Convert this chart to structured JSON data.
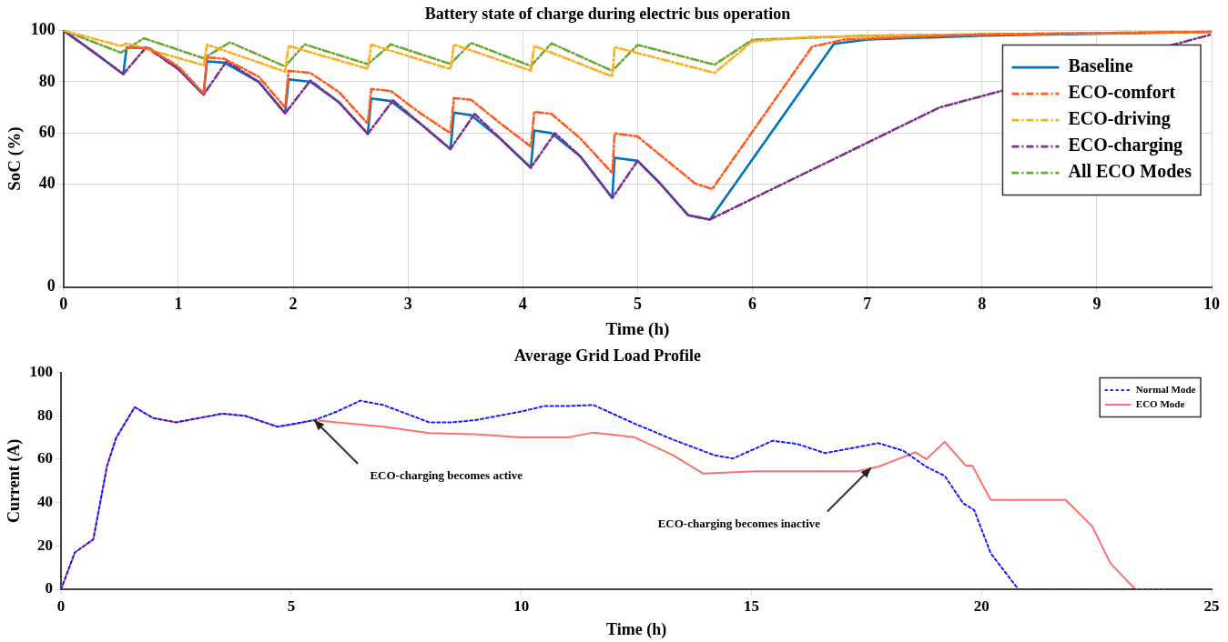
{
  "chart_data": [
    {
      "type": "line",
      "title": "Battery state of charge during electric bus operation",
      "xlabel": "Time (h)",
      "ylabel": "SoC (%)",
      "xlim": [
        0,
        10
      ],
      "xticks": [
        0,
        1,
        2,
        3,
        4,
        5,
        6,
        7,
        8,
        9,
        10
      ],
      "ylim": [
        0,
        100
      ],
      "yticks": [
        0,
        40,
        60,
        80,
        100
      ],
      "grid": true,
      "legend": "top right",
      "series": [
        {
          "name": "Baseline",
          "color": "#0072bd",
          "line_style": "solid",
          "x": [
            0,
            0.25,
            0.52,
            0.55,
            0.75,
            1.0,
            1.22,
            1.25,
            1.4,
            1.7,
            1.93,
            1.96,
            2.15,
            2.4,
            2.65,
            2.68,
            2.85,
            3.1,
            3.37,
            3.4,
            3.55,
            3.8,
            4.07,
            4.1,
            4.25,
            4.5,
            4.78,
            4.8,
            5.0,
            5.2,
            5.44,
            5.63,
            6.71,
            7,
            8,
            10
          ],
          "values": [
            100,
            92,
            83,
            93.5,
            93,
            85,
            75,
            88,
            87.5,
            80,
            67.7,
            81,
            80,
            72,
            59.7,
            73.5,
            72.5,
            64,
            53.8,
            68,
            67,
            58,
            46.5,
            61,
            60,
            51,
            34.7,
            50.4,
            49.2,
            40.2,
            28,
            26.3,
            94.8,
            96.5,
            98,
            99.5
          ]
        },
        {
          "name": "ECO-comfort",
          "color": "#ff5a1f",
          "line_style": "dashed",
          "x": [
            0.55,
            0.75,
            1.0,
            1.22,
            1.25,
            1.4,
            1.7,
            1.93,
            1.96,
            2.15,
            2.4,
            2.65,
            2.68,
            2.85,
            3.1,
            3.37,
            3.4,
            3.55,
            3.8,
            4.07,
            4.1,
            4.25,
            4.5,
            4.78,
            4.8,
            5.0,
            5.5,
            5.65,
            6.52,
            6.8,
            8,
            10
          ],
          "values": [
            93.5,
            93,
            86,
            75.5,
            89.5,
            89,
            82,
            70,
            84.3,
            83.5,
            76,
            63.7,
            77.2,
            76.5,
            68,
            60,
            73.7,
            73,
            64,
            54.8,
            68.3,
            67.5,
            58,
            44.4,
            59.9,
            58.7,
            40.4,
            38.2,
            93.7,
            96.5,
            98.5,
            99.5
          ]
        },
        {
          "name": "ECO-driving",
          "color": "#ffad1f",
          "line_style": "dashed",
          "x": [
            0,
            0.5,
            0.55,
            1.22,
            1.25,
            1.93,
            1.96,
            2.65,
            2.68,
            3.37,
            3.4,
            4.07,
            4.1,
            4.78,
            4.8,
            5.67,
            6.0,
            6.5,
            8,
            10
          ],
          "values": [
            100,
            94,
            95,
            86.5,
            94.5,
            84,
            94,
            85.1,
            94.5,
            85,
            94.5,
            84.4,
            94,
            82.1,
            93.5,
            83.5,
            95.8,
            97.5,
            98.5,
            99.5
          ]
        },
        {
          "name": "ECO-charging",
          "color": "#7e2f8e",
          "line_style": "dashed",
          "x": [
            0,
            0.25,
            0.52,
            0.72,
            1.0,
            1.22,
            1.42,
            1.7,
            1.93,
            2.15,
            2.4,
            2.65,
            2.87,
            3.1,
            3.37,
            3.58,
            3.8,
            4.07,
            4.28,
            4.5,
            4.78,
            5.0,
            5.2,
            5.44,
            5.63,
            7.63,
            10
          ],
          "values": [
            100,
            92,
            83,
            93.5,
            85,
            75,
            88,
            80,
            67.7,
            80.5,
            72,
            59.7,
            72.8,
            64,
            53.8,
            67.5,
            58,
            46.5,
            60,
            51,
            34.7,
            49.2,
            40.2,
            28,
            26.3,
            70,
            98.5
          ]
        },
        {
          "name": "All ECO Modes",
          "color": "#6aa832",
          "line_style": "dashed",
          "x": [
            0,
            0.5,
            0.7,
            1.22,
            1.45,
            1.93,
            2.1,
            2.65,
            2.85,
            3.37,
            3.55,
            4.07,
            4.25,
            4.78,
            5.0,
            5.67,
            6.0,
            7,
            10
          ],
          "values": [
            100,
            91.4,
            97,
            89.2,
            95.4,
            86,
            94.6,
            86.9,
            94.6,
            87,
            95.2,
            86.2,
            95,
            84.3,
            94.4,
            86.7,
            96.4,
            98,
            99.5
          ]
        }
      ]
    },
    {
      "type": "line",
      "title": "Average Grid Load Profile",
      "xlabel": "Time (h)",
      "ylabel": "Current (A)",
      "xlim": [
        0,
        25
      ],
      "xticks": [
        0,
        5,
        10,
        15,
        20,
        25
      ],
      "ylim": [
        0,
        100
      ],
      "yticks": [
        0,
        20,
        40,
        60,
        80,
        100
      ],
      "legend": "top right",
      "annotations": [
        {
          "text": "ECO-charging becomes active",
          "x": 5.5,
          "y": 78
        },
        {
          "text": "ECO-charging becomes inactive",
          "x": 17.6,
          "y": 56
        }
      ],
      "series": [
        {
          "name": "Normal Mode",
          "color": "#1a1aff",
          "line_style": "dotted",
          "x": [
            0,
            0.3,
            0.7,
            1.0,
            1.2,
            1.6,
            2.0,
            2.5,
            3.0,
            3.5,
            4.0,
            4.7,
            5.0,
            5.5,
            6.0,
            6.5,
            7.0,
            7.5,
            8.0,
            8.5,
            9.0,
            9.5,
            10.0,
            10.5,
            11.0,
            11.57,
            12.45,
            13.3,
            14.2,
            14.6,
            15.46,
            16.0,
            16.6,
            17.76,
            18.3,
            18.8,
            19.2,
            19.6,
            19.84,
            20.2,
            20.8,
            24.04
          ],
          "values": [
            0,
            17,
            23,
            57,
            70,
            84,
            79,
            77,
            79,
            81,
            80,
            75,
            76,
            78,
            82,
            87,
            85,
            81,
            77,
            77,
            78,
            80,
            82,
            84.5,
            84.5,
            85,
            76.5,
            69,
            61.8,
            60.3,
            68.5,
            67,
            62.8,
            67.4,
            63.9,
            56.5,
            52.3,
            39.7,
            36.6,
            16.6,
            0,
            0
          ]
        },
        {
          "name": "ECO Mode",
          "color": "#ff6f6f",
          "line_style": "solid",
          "x": [
            0,
            0.3,
            0.7,
            1.0,
            1.2,
            1.6,
            2.0,
            2.5,
            3.0,
            3.5,
            4.0,
            4.7,
            5.0,
            5.5,
            6.0,
            7.0,
            8.0,
            9.0,
            10.0,
            11.0,
            11.57,
            12.45,
            13.3,
            13.95,
            15.1,
            17.3,
            17.76,
            18.56,
            18.8,
            19.2,
            19.66,
            19.8,
            20.2,
            21.83,
            22.4,
            22.8,
            23.34,
            24.04
          ],
          "values": [
            0,
            17,
            23,
            57,
            70,
            84,
            79,
            77,
            79,
            81,
            80,
            75,
            76,
            78,
            77,
            75,
            72,
            71.5,
            70,
            70,
            72.3,
            70.2,
            61.8,
            53.4,
            54.4,
            54.4,
            56.5,
            63.2,
            60,
            68,
            57,
            57,
            41.2,
            41.2,
            29.2,
            12,
            0,
            0
          ]
        }
      ]
    }
  ]
}
